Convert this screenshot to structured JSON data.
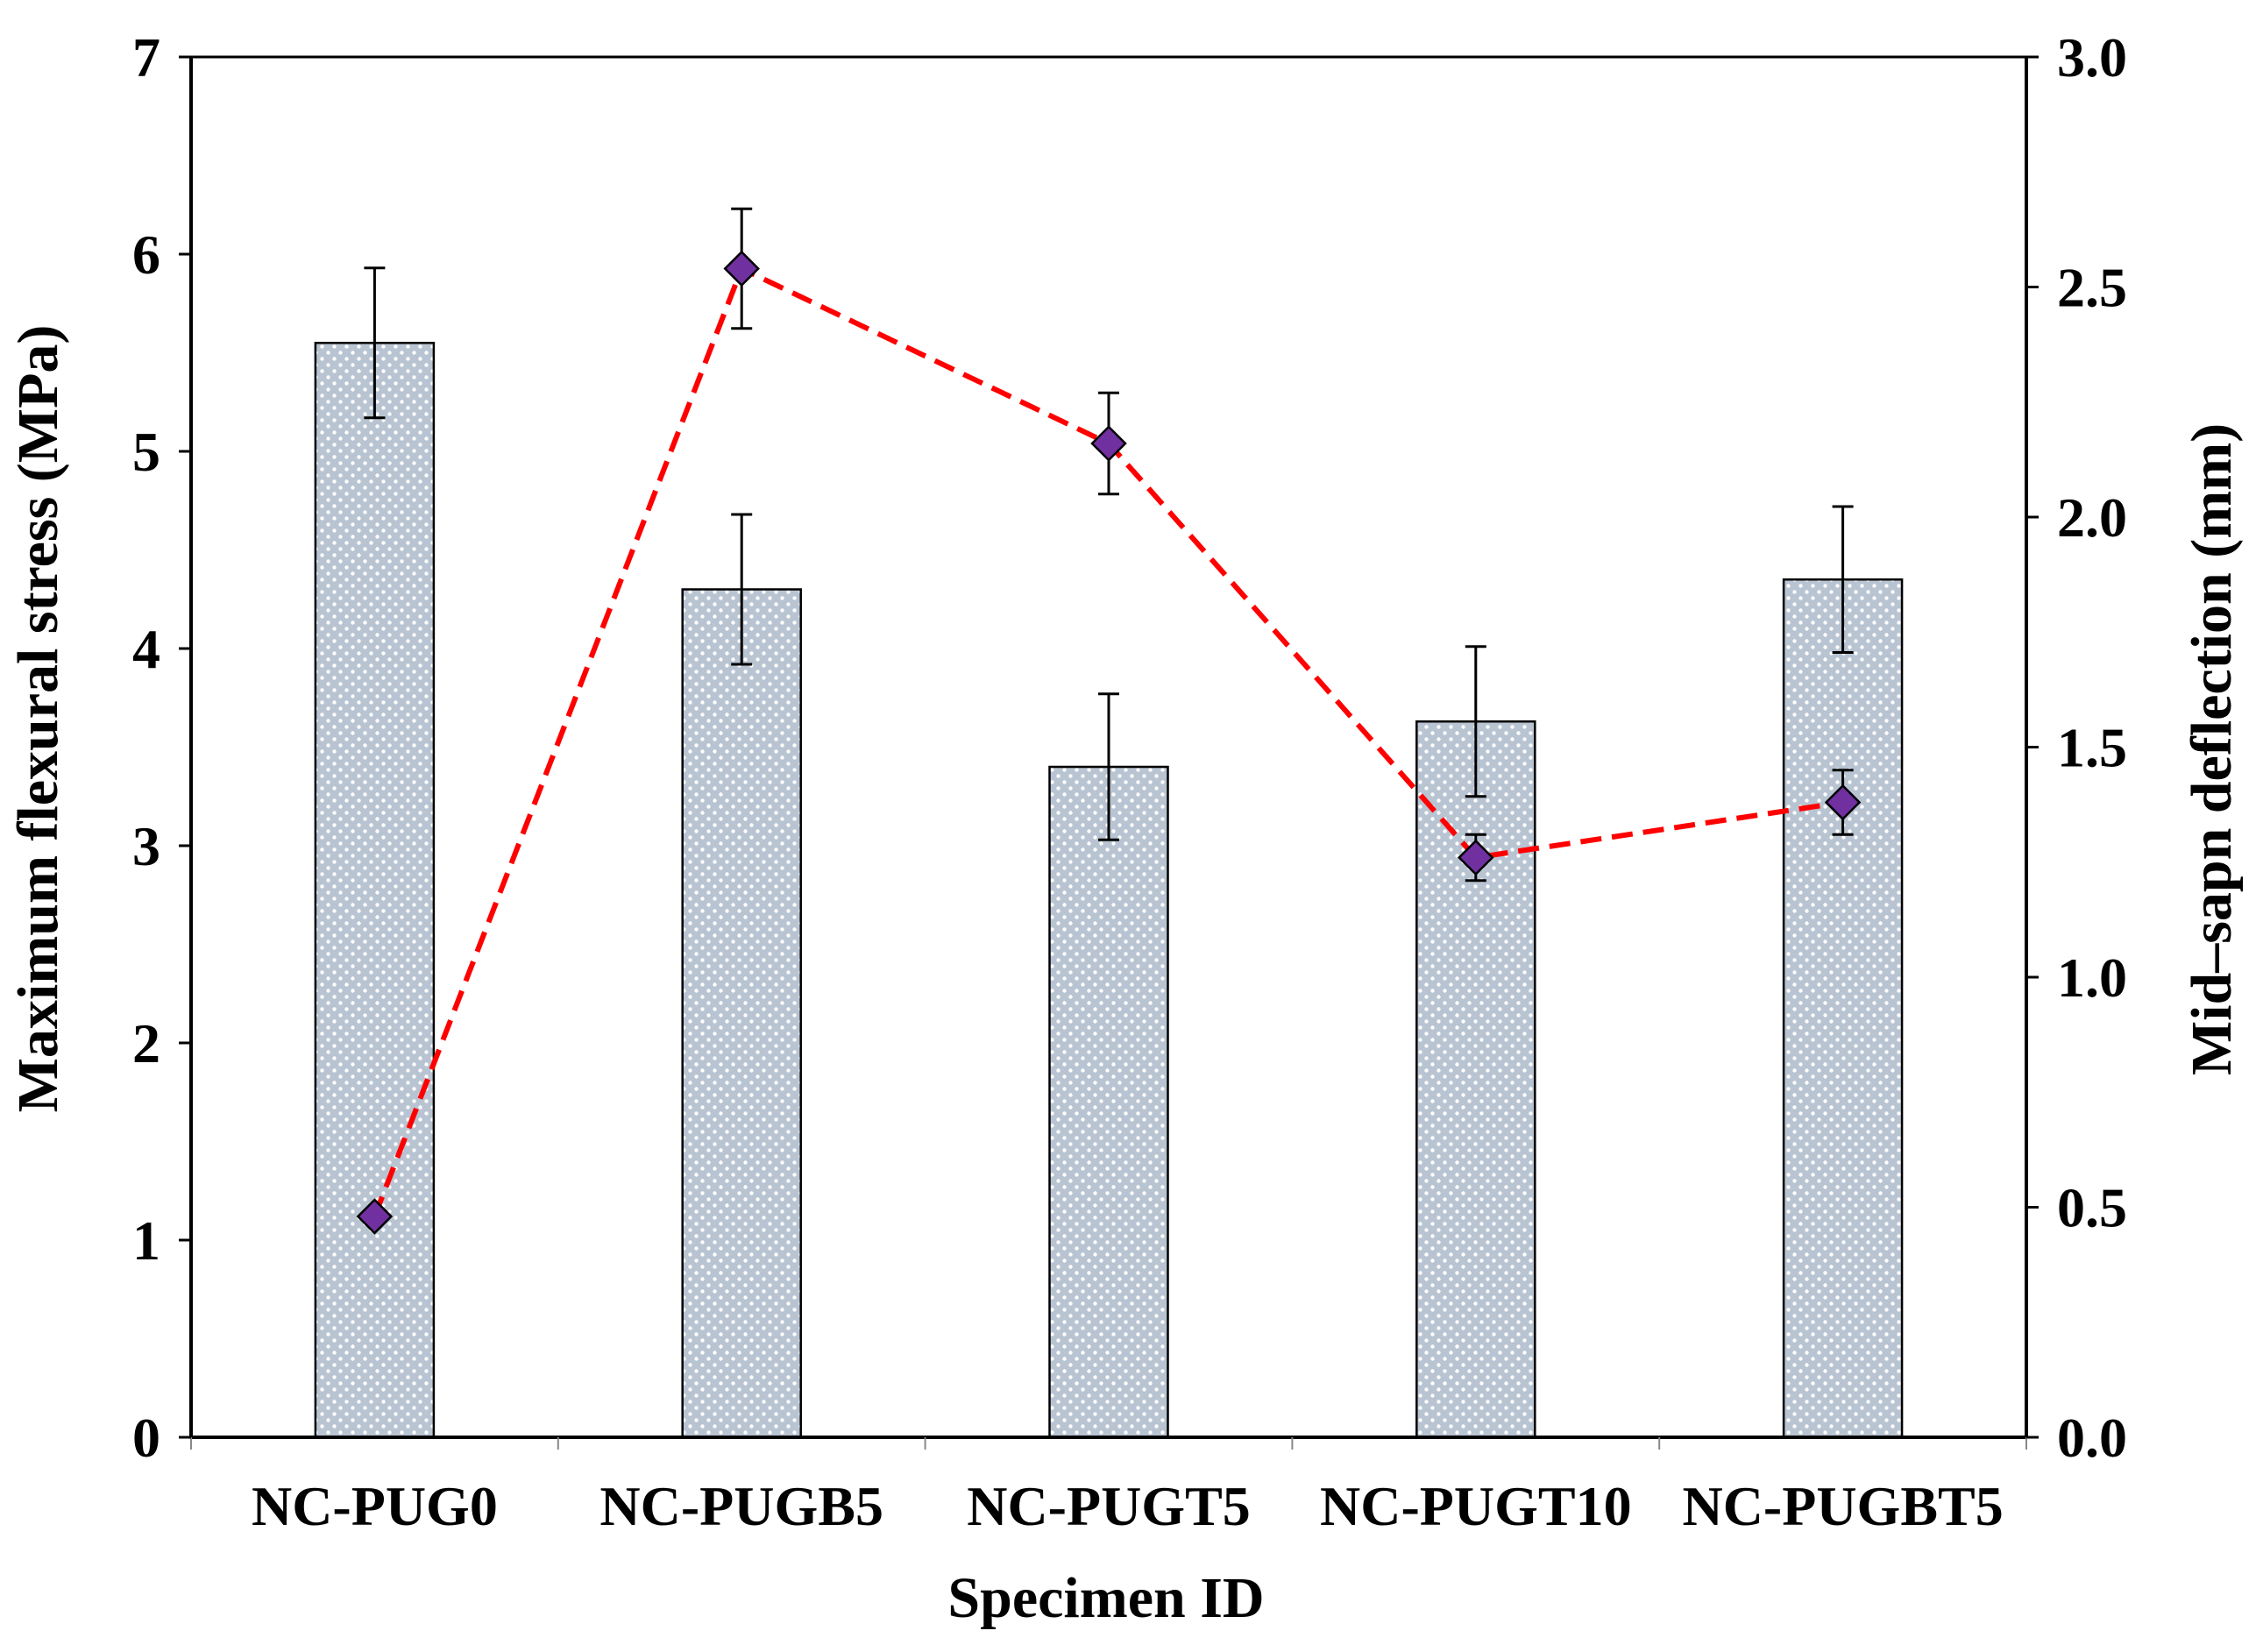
{
  "chart_data": {
    "type": "bar",
    "xlabel": "Specimen ID",
    "categories": [
      "NC-PUG0",
      "NC-PUGB5",
      "NC-PUGT5",
      "NC-PUGT10",
      "NC-PUGBT5"
    ],
    "bar_series": {
      "axis": "left",
      "ylabel": "Maximum flexural stress (MPa)",
      "ylim": [
        0,
        7
      ],
      "yticks": [
        "0",
        "1",
        "2",
        "3",
        "4",
        "5",
        "6",
        "7"
      ],
      "values": [
        5.55,
        4.3,
        3.4,
        3.63,
        4.35
      ],
      "error": [
        0.38,
        0.38,
        0.37,
        0.38,
        0.37
      ],
      "fill_color": "#c8d1dc",
      "pattern": "dotted"
    },
    "line_series": {
      "axis": "right",
      "ylabel": "Mid–sapn deflection (mm)",
      "ylim": [
        0,
        3.0
      ],
      "yticks": [
        "0.0",
        "0.5",
        "1.0",
        "1.5",
        "2.0",
        "2.5",
        "3.0"
      ],
      "values": [
        0.48,
        2.54,
        2.16,
        1.26,
        1.38
      ],
      "error": [
        0.0,
        0.13,
        0.11,
        0.05,
        0.07
      ],
      "line_color": "#ff0000",
      "line_style": "dashed",
      "marker": "diamond",
      "marker_color": "#7030a0"
    },
    "grid": false,
    "legend": "none"
  }
}
